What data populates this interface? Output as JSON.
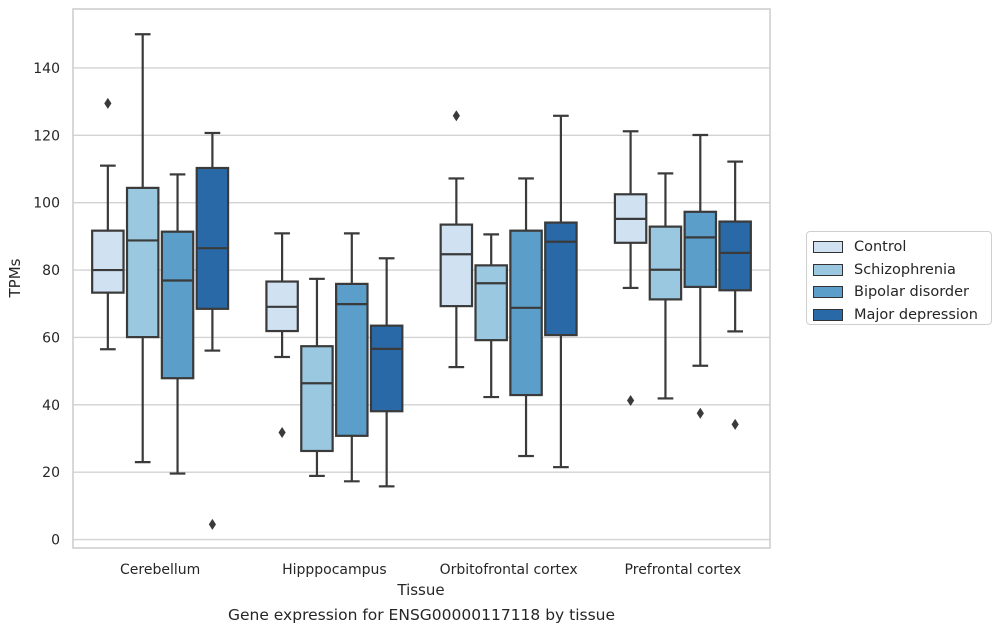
{
  "chart_data": {
    "type": "box",
    "title": "",
    "caption": "Gene expression for ENSG00000117118 by tissue",
    "xlabel": "Tissue",
    "ylabel": "TPMs",
    "categories": [
      "Cerebellum",
      "Hipppocampus",
      "Orbitofrontal cortex",
      "Prefrontal cortex"
    ],
    "ylim": [
      -2.5,
      157.5
    ],
    "yticks": [
      0,
      20,
      40,
      60,
      80,
      100,
      120,
      140
    ],
    "grid": "horizontal",
    "legend_position": "right",
    "series": [
      {
        "name": "Control",
        "color": "#d0e1f2",
        "boxes": [
          {
            "whisker_low": 56.5,
            "q1": 73.3,
            "median": 80.0,
            "q3": 91.7,
            "whisker_high": 111.0,
            "outliers": [
              129.5
            ]
          },
          {
            "whisker_low": 54.2,
            "q1": 61.9,
            "median": 69.1,
            "q3": 76.6,
            "whisker_high": 90.9,
            "outliers": [
              31.8
            ]
          },
          {
            "whisker_low": 51.2,
            "q1": 69.3,
            "median": 84.7,
            "q3": 93.5,
            "whisker_high": 107.2,
            "outliers": [
              125.8
            ]
          },
          {
            "whisker_low": 74.7,
            "q1": 88.1,
            "median": 95.2,
            "q3": 102.5,
            "whisker_high": 121.2,
            "outliers": [
              41.3
            ]
          }
        ]
      },
      {
        "name": "Schizophrenia",
        "color": "#9ac8e0",
        "boxes": [
          {
            "whisker_low": 23.0,
            "q1": 60.1,
            "median": 88.8,
            "q3": 104.4,
            "whisker_high": 150.0,
            "outliers": []
          },
          {
            "whisker_low": 18.9,
            "q1": 26.3,
            "median": 46.4,
            "q3": 57.4,
            "whisker_high": 77.4,
            "outliers": []
          },
          {
            "whisker_low": 42.3,
            "q1": 59.2,
            "median": 76.1,
            "q3": 81.4,
            "whisker_high": 90.6,
            "outliers": []
          },
          {
            "whisker_low": 41.9,
            "q1": 71.3,
            "median": 80.1,
            "q3": 92.9,
            "whisker_high": 108.7,
            "outliers": []
          }
        ]
      },
      {
        "name": "Bipolar disorder",
        "color": "#5a9ec9",
        "boxes": [
          {
            "whisker_low": 19.6,
            "q1": 47.9,
            "median": 76.9,
            "q3": 91.4,
            "whisker_high": 108.4,
            "outliers": []
          },
          {
            "whisker_low": 17.3,
            "q1": 30.8,
            "median": 69.9,
            "q3": 75.9,
            "whisker_high": 90.9,
            "outliers": []
          },
          {
            "whisker_low": 24.8,
            "q1": 42.9,
            "median": 68.8,
            "q3": 91.7,
            "whisker_high": 107.2,
            "outliers": []
          },
          {
            "whisker_low": 51.6,
            "q1": 75.0,
            "median": 89.7,
            "q3": 97.3,
            "whisker_high": 120.1,
            "outliers": [
              37.5
            ]
          }
        ]
      },
      {
        "name": "Major depression",
        "color": "#2a69a8",
        "boxes": [
          {
            "whisker_low": 56.1,
            "q1": 68.5,
            "median": 86.5,
            "q3": 110.3,
            "whisker_high": 120.7,
            "outliers": [
              4.5
            ]
          },
          {
            "whisker_low": 15.8,
            "q1": 38.1,
            "median": 56.6,
            "q3": 63.5,
            "whisker_high": 83.5,
            "outliers": []
          },
          {
            "whisker_low": 21.5,
            "q1": 60.7,
            "median": 88.4,
            "q3": 94.1,
            "whisker_high": 125.8,
            "outliers": []
          },
          {
            "whisker_low": 61.8,
            "q1": 74.0,
            "median": 85.1,
            "q3": 94.4,
            "whisker_high": 112.2,
            "outliers": [
              34.2
            ]
          }
        ]
      }
    ]
  }
}
